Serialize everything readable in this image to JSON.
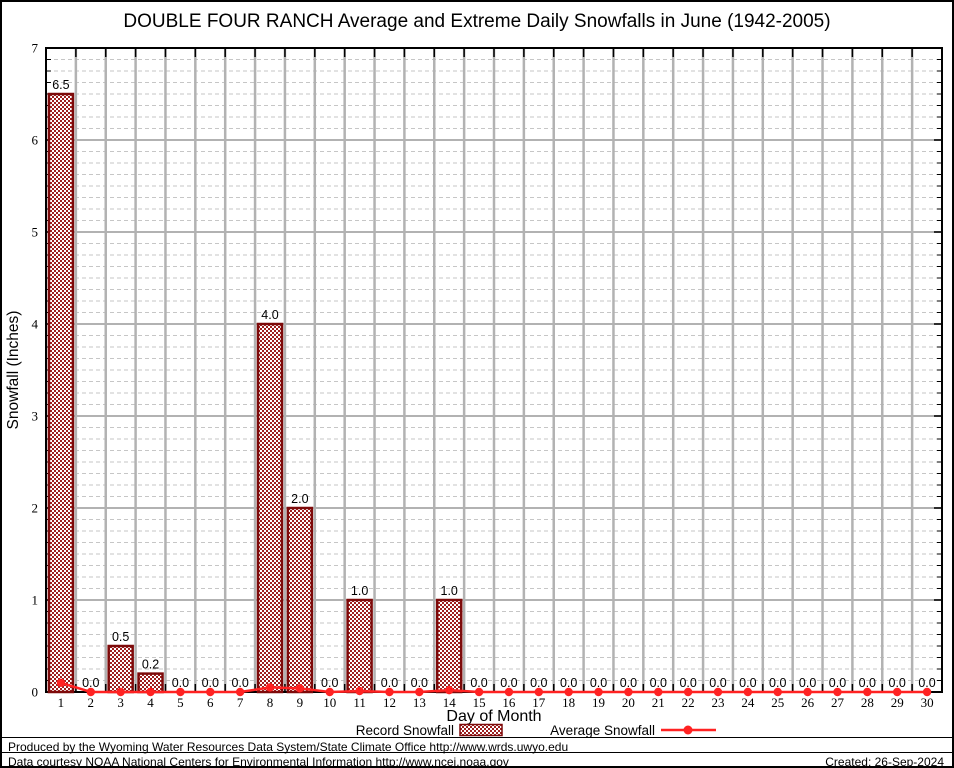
{
  "title": "DOUBLE FOUR RANCH Average and Extreme Daily Snowfalls in June (1942-2005)",
  "chart_data": {
    "type": "bar",
    "title": "DOUBLE FOUR RANCH Average and Extreme Daily Snowfalls in June (1942-2005)",
    "xlabel": "Day of Month",
    "ylabel": "Snowfall (Inches)",
    "ylim": [
      0,
      7
    ],
    "yticks": [
      0,
      1,
      2,
      3,
      4,
      5,
      6,
      7
    ],
    "y_minor_step": 0.125,
    "grid": true,
    "legend_position": "bottom",
    "categories": [
      1,
      2,
      3,
      4,
      5,
      6,
      7,
      8,
      9,
      10,
      11,
      12,
      13,
      14,
      15,
      16,
      17,
      18,
      19,
      20,
      21,
      22,
      23,
      24,
      25,
      26,
      27,
      28,
      29,
      30
    ],
    "series": [
      {
        "name": "Record Snowfall",
        "type": "bar",
        "values": [
          6.5,
          0.0,
          0.5,
          0.2,
          0.0,
          0.0,
          0.0,
          4.0,
          2.0,
          0.0,
          1.0,
          0.0,
          0.0,
          1.0,
          0.0,
          0.0,
          0.0,
          0.0,
          0.0,
          0.0,
          0.0,
          0.0,
          0.0,
          0.0,
          0.0,
          0.0,
          0.0,
          0.0,
          0.0,
          0.0
        ]
      },
      {
        "name": "Average Snowfall",
        "type": "line",
        "values": [
          0.1,
          0.0,
          0.0,
          0.0,
          0.0,
          0.0,
          0.0,
          0.05,
          0.04,
          0.0,
          0.01,
          0.0,
          0.0,
          0.02,
          0.0,
          0.0,
          0.0,
          0.0,
          0.0,
          0.0,
          0.0,
          0.0,
          0.0,
          0.0,
          0.0,
          0.0,
          0.0,
          0.0,
          0.0,
          0.0
        ]
      }
    ],
    "value_labels": [
      "6.5",
      "0.0",
      "0.5",
      "0.2",
      "0.0",
      "0.0",
      "0.0",
      "4.0",
      "2.0",
      "0.0",
      "1.0",
      "0.0",
      "0.0",
      "1.0",
      "0.0",
      "0.0",
      "0.0",
      "0.0",
      "0.0",
      "0.0",
      "0.0",
      "0.0",
      "0.0",
      "0.0",
      "0.0",
      "0.0",
      "0.0",
      "0.0",
      "0.0",
      "0.0"
    ],
    "colors": {
      "bar_border": "#7d0a0a",
      "bar_pattern": "#9e1f1f",
      "average_line": "#ff2222",
      "grid_major": "#b2b2b2",
      "grid_minor": "#c6c6c6",
      "frame": "#000000",
      "text": "#000000"
    }
  },
  "footer": {
    "line1": "Produced by the Wyoming Water Resources Data System/State Climate Office http://www.wrds.uwyo.edu",
    "line2": "Data courtesy NOAA National Centers for Environmental Information http://www.ncei.noaa.gov",
    "created": "Created: 26-Sep-2024"
  }
}
